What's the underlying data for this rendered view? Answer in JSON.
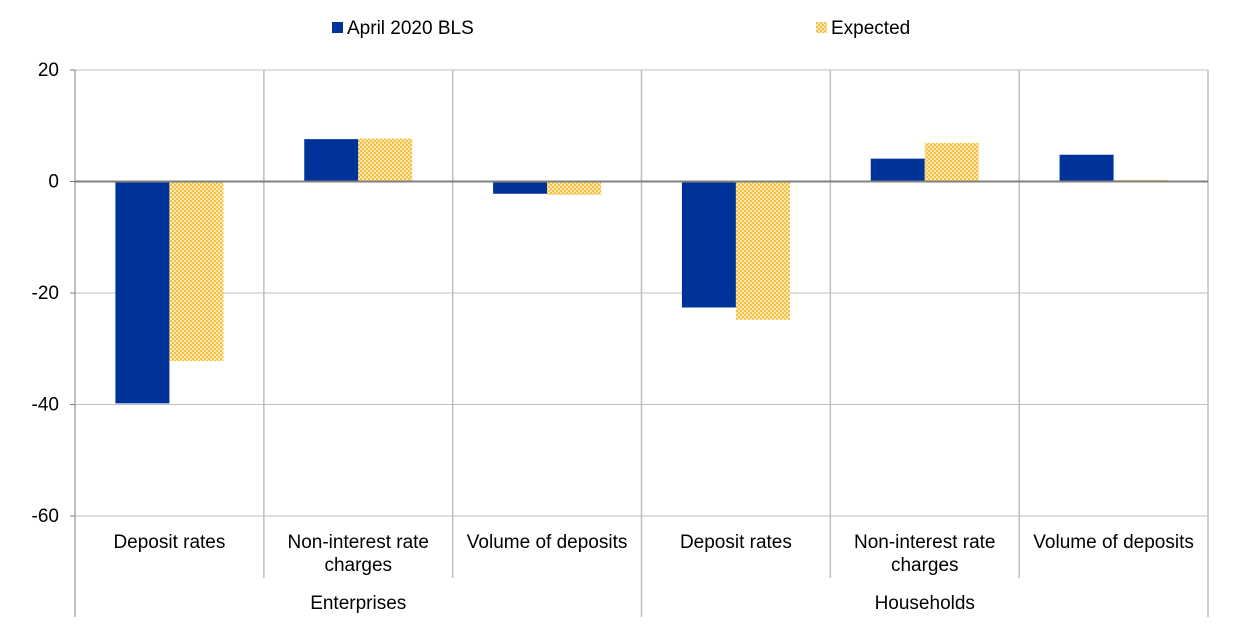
{
  "chart_data": {
    "type": "bar",
    "groups": [
      {
        "label": "Enterprises",
        "categories": [
          "Deposit rates",
          "Non-interest rate charges",
          "Volume of deposits"
        ]
      },
      {
        "label": "Households",
        "categories": [
          "Deposit rates",
          "Non-interest rate charges",
          "Volume of deposits"
        ]
      }
    ],
    "categories": [
      {
        "lines": [
          "Deposit rates"
        ]
      },
      {
        "lines": [
          "Non-interest rate",
          "charges"
        ]
      },
      {
        "lines": [
          "Volume of deposits"
        ]
      },
      {
        "lines": [
          "Deposit rates"
        ]
      },
      {
        "lines": [
          "Non-interest rate",
          "charges"
        ]
      },
      {
        "lines": [
          "Volume of deposits"
        ]
      }
    ],
    "series": [
      {
        "name": "April 2020 BLS",
        "color": "#003399",
        "pattern": "solid",
        "values": [
          -39.8,
          7.6,
          -2.2,
          -22.6,
          4.1,
          4.8
        ]
      },
      {
        "name": "Expected",
        "color": "#F3C143",
        "pattern": "checker",
        "values": [
          -32.2,
          7.7,
          -2.4,
          -24.8,
          6.9,
          0.3
        ]
      }
    ],
    "ylim": [
      -60,
      20
    ],
    "yticks": [
      "20",
      "0",
      "-20",
      "-40",
      "-60"
    ],
    "ytick_values": [
      20,
      0,
      -20,
      -40,
      -60
    ],
    "grid": true,
    "legend": "top-center"
  }
}
